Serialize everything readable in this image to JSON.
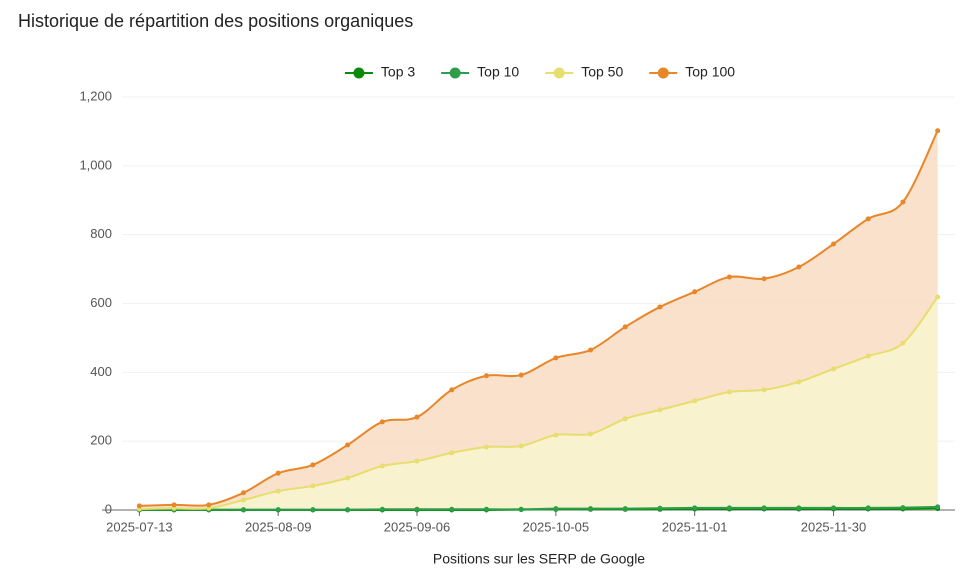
{
  "chart_data": {
    "type": "area",
    "title": "Historique de répartition des positions organiques",
    "xlabel": "Positions sur les SERP de Google",
    "categories": [
      "2025-07-13",
      null,
      null,
      null,
      "2025-08-09",
      null,
      null,
      null,
      "2025-09-06",
      null,
      null,
      null,
      "2025-10-05",
      null,
      null,
      null,
      "2025-11-01",
      null,
      null,
      null,
      "2025-11-30",
      null,
      null,
      null
    ],
    "series": [
      {
        "name": "Top 3",
        "color": "#0a8a0a",
        "values": [
          0,
          0,
          0,
          0,
          0,
          0,
          0,
          0,
          0,
          0,
          0,
          1,
          2,
          2,
          2,
          2,
          3,
          3,
          3,
          3,
          3,
          3,
          3,
          4
        ]
      },
      {
        "name": "Top 10",
        "color": "#2e9e4a",
        "values": [
          1,
          1,
          1,
          1,
          1,
          1,
          1,
          2,
          2,
          2,
          2,
          2,
          4,
          4,
          4,
          5,
          6,
          6,
          6,
          6,
          6,
          6,
          7,
          9
        ]
      },
      {
        "name": "Top 50",
        "color": "#e6de6e",
        "fill": "#f8f4cf",
        "values": [
          3,
          5,
          5,
          29,
          55,
          70,
          93,
          128,
          142,
          166,
          183,
          186,
          218,
          221,
          265,
          291,
          317,
          343,
          349,
          372,
          410,
          447,
          485,
          619
        ]
      },
      {
        "name": "Top 100",
        "color": "#e8862a",
        "fill": "#f8dcc2",
        "values": [
          12,
          15,
          15,
          50,
          107,
          131,
          189,
          256,
          270,
          349,
          390,
          392,
          442,
          465,
          532,
          590,
          634,
          677,
          672,
          706,
          773,
          846,
          895,
          1102
        ]
      }
    ],
    "ylim": [
      0,
      1200
    ],
    "yticks": [
      0,
      200,
      400,
      600,
      800,
      {
        "value": 1000,
        "label": "1,000"
      },
      {
        "value": 1200,
        "label": "1,200"
      }
    ],
    "grid": true,
    "legend": "top"
  }
}
